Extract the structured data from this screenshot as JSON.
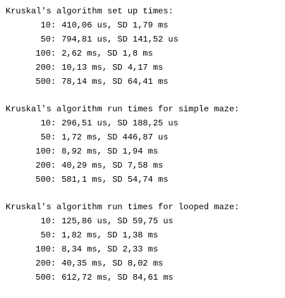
{
  "sections": [
    {
      "heading": "Kruskal's algorithm set up times:",
      "rows": [
        {
          "size": "10",
          "value": "410,06 us, SD 1,79 ms"
        },
        {
          "size": "50",
          "value": "794,81 us, SD 141,52 us"
        },
        {
          "size": "100",
          "value": "2,62 ms, SD 1,8 ms"
        },
        {
          "size": "200",
          "value": "10,13 ms, SD 4,17 ms"
        },
        {
          "size": "500",
          "value": "78,14 ms, SD 64,41 ms"
        }
      ]
    },
    {
      "heading": "Kruskal's algorithm run times for simple maze:",
      "rows": [
        {
          "size": "10",
          "value": "296,51 us, SD 188,25 us"
        },
        {
          "size": "50",
          "value": "1,72 ms, SD 446,87 us"
        },
        {
          "size": "100",
          "value": "8,92 ms, SD 1,94 ms"
        },
        {
          "size": "200",
          "value": "40,29 ms, SD 7,58 ms"
        },
        {
          "size": "500",
          "value": "581,1 ms, SD 54,74 ms"
        }
      ]
    },
    {
      "heading": "Kruskal's algorithm run times for looped maze:",
      "rows": [
        {
          "size": "10",
          "value": "125,86 us, SD 59,75 us"
        },
        {
          "size": "50",
          "value": "1,82 ms, SD 1,38 ms"
        },
        {
          "size": "100",
          "value": "8,34 ms, SD 2,33 ms"
        },
        {
          "size": "200",
          "value": "40,35 ms, SD 8,02 ms"
        },
        {
          "size": "500",
          "value": "612,72 ms, SD 84,61 ms"
        }
      ]
    }
  ]
}
